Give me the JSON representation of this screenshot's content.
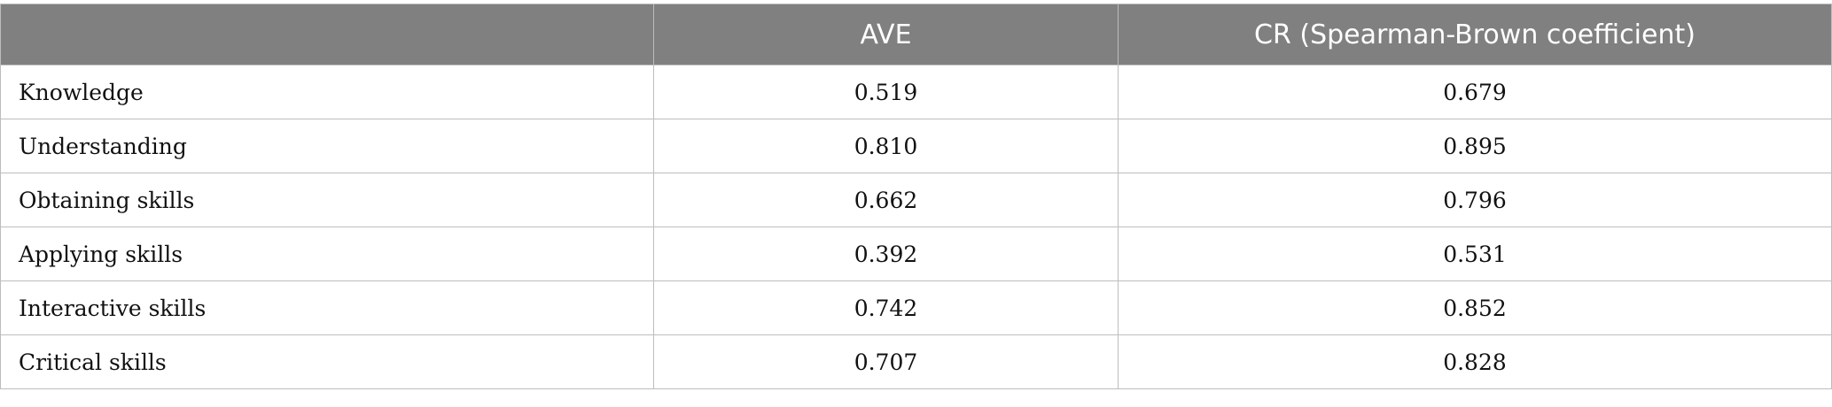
{
  "colors": {
    "header_bg": "#808080",
    "header_text": "#ffffff",
    "grid_line": "#bdbdbd",
    "body_bg": "#ffffff"
  },
  "table": {
    "columns": [
      "",
      "AVE",
      "CR (Spearman-Brown coefficient)"
    ],
    "rows": [
      {
        "label": "Knowledge",
        "ave": "0.519",
        "cr": "0.679"
      },
      {
        "label": "Understanding",
        "ave": "0.810",
        "cr": "0.895"
      },
      {
        "label": "Obtaining skills",
        "ave": "0.662",
        "cr": "0.796"
      },
      {
        "label": "Applying skills",
        "ave": "0.392",
        "cr": "0.531"
      },
      {
        "label": "Interactive skills",
        "ave": "0.742",
        "cr": "0.852"
      },
      {
        "label": "Critical skills",
        "ave": "0.707",
        "cr": "0.828"
      }
    ]
  }
}
